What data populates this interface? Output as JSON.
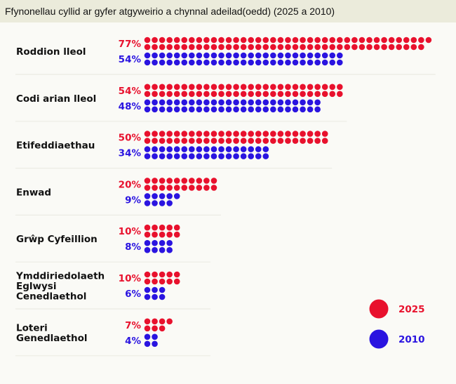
{
  "chart_data": {
    "type": "dot",
    "title": "Ffynonellau cyllid ar gyfer atgyweirio a chynnal adeilad(oedd) (2025 a 2010)",
    "categories": [
      "Roddion lleol",
      "Codi arian lleol",
      "Etifeddiaethau",
      "Enwad",
      "Grŵp Cyfeillion",
      "Ymddiriedolaeth Eglwysi Cenedlaethol",
      "Loteri Genedlaethol"
    ],
    "series": [
      {
        "name": "2025",
        "color": "#e8112d",
        "values": [
          77,
          54,
          50,
          20,
          10,
          10,
          7
        ]
      },
      {
        "name": "2010",
        "color": "#2a14e0",
        "values": [
          54,
          48,
          34,
          9,
          8,
          6,
          4
        ]
      }
    ],
    "unit": "%",
    "legend": "bottom-right"
  }
}
